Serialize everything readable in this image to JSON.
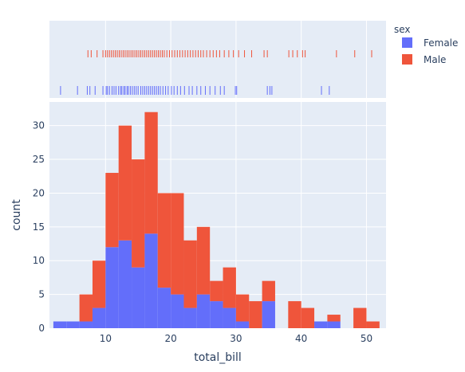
{
  "chart_data": {
    "type": "bar",
    "subtype": "stacked-histogram-with-rug",
    "xlabel": "total_bill",
    "ylabel": "count",
    "x_ticks": [
      10,
      20,
      30,
      40,
      50
    ],
    "y_ticks": [
      0,
      5,
      10,
      15,
      20,
      25,
      30
    ],
    "xlim": [
      1.4,
      53.0
    ],
    "ylim": [
      0,
      33.5
    ],
    "bin_width": 2,
    "bin_starts": [
      2,
      4,
      6,
      8,
      10,
      12,
      14,
      16,
      18,
      20,
      22,
      24,
      26,
      28,
      30,
      32,
      34,
      36,
      38,
      40,
      42,
      44,
      46,
      48,
      50
    ],
    "grid": true,
    "legend": {
      "title": "sex",
      "position": "top-right",
      "entries": [
        "Female",
        "Male"
      ]
    },
    "series": [
      {
        "name": "Female",
        "color": "#636efa",
        "values": [
          1,
          1,
          1,
          3,
          12,
          13,
          9,
          14,
          6,
          5,
          3,
          5,
          4,
          3,
          1,
          0,
          4,
          0,
          0,
          0,
          1,
          1,
          0,
          0,
          0
        ]
      },
      {
        "name": "Male",
        "color": "#ef553b",
        "values": [
          0,
          0,
          4,
          7,
          11,
          17,
          16,
          18,
          14,
          15,
          10,
          10,
          3,
          6,
          4,
          4,
          3,
          0,
          4,
          3,
          0,
          1,
          0,
          3,
          1
        ]
      }
    ],
    "rug": {
      "Female": [
        3.1,
        5.7,
        7.2,
        7.6,
        8.4,
        9.6,
        10.1,
        10.3,
        10.6,
        11.0,
        11.3,
        11.6,
        12.0,
        12.3,
        12.5,
        12.8,
        13.0,
        13.3,
        13.5,
        13.8,
        14.1,
        14.4,
        14.7,
        15.0,
        15.4,
        15.7,
        16.0,
        16.3,
        16.6,
        16.9,
        17.2,
        17.5,
        17.8,
        18.1,
        18.4,
        18.8,
        19.2,
        19.6,
        20.1,
        20.5,
        21.0,
        21.5,
        22.1,
        22.8,
        23.3,
        24.0,
        24.6,
        25.3,
        26.0,
        26.8,
        27.6,
        28.2,
        29.9,
        30.1,
        34.8,
        35.2,
        35.5,
        43.1,
        44.3
      ],
      "Male": [
        7.3,
        7.8,
        8.7,
        9.6,
        10.0,
        10.3,
        10.6,
        10.9,
        11.2,
        11.5,
        11.8,
        12.1,
        12.4,
        12.7,
        13.0,
        13.3,
        13.6,
        13.9,
        14.2,
        14.5,
        14.8,
        15.1,
        15.4,
        15.7,
        16.0,
        16.3,
        16.6,
        16.9,
        17.2,
        17.5,
        17.8,
        18.1,
        18.4,
        18.7,
        19.0,
        19.4,
        19.8,
        20.2,
        20.6,
        21.0,
        21.4,
        21.8,
        22.2,
        22.6,
        23.0,
        23.4,
        23.8,
        24.2,
        24.6,
        25.0,
        25.5,
        26.0,
        26.5,
        27.0,
        27.5,
        28.2,
        28.9,
        29.6,
        30.4,
        31.3,
        32.4,
        34.3,
        34.8,
        38.1,
        38.7,
        39.4,
        40.2,
        40.6,
        45.4,
        48.2,
        50.8
      ]
    }
  }
}
